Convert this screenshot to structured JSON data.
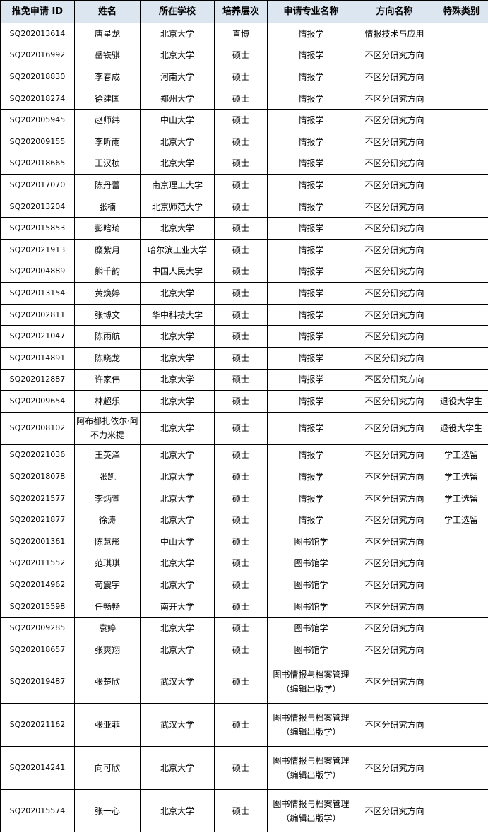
{
  "headers": [
    "推免申请 ID",
    "姓名",
    "所在学校",
    "培养层次",
    "申请专业名称",
    "方向名称",
    "特殊类别"
  ],
  "rows": [
    [
      "SQ202013614",
      "唐星龙",
      "北京大学",
      "直博",
      "情报学",
      "情报技术与应用",
      ""
    ],
    [
      "SQ202016992",
      "岳铁骐",
      "北京大学",
      "硕士",
      "情报学",
      "不区分研究方向",
      ""
    ],
    [
      "SQ202018830",
      "李春成",
      "河南大学",
      "硕士",
      "情报学",
      "不区分研究方向",
      ""
    ],
    [
      "SQ202018274",
      "徐建国",
      "郑州大学",
      "硕士",
      "情报学",
      "不区分研究方向",
      ""
    ],
    [
      "SQ202005945",
      "赵师纬",
      "中山大学",
      "硕士",
      "情报学",
      "不区分研究方向",
      ""
    ],
    [
      "SQ202009155",
      "李昕雨",
      "北京大学",
      "硕士",
      "情报学",
      "不区分研究方向",
      ""
    ],
    [
      "SQ202018665",
      "王汉桢",
      "北京大学",
      "硕士",
      "情报学",
      "不区分研究方向",
      ""
    ],
    [
      "SQ202017070",
      "陈丹蕾",
      "南京理工大学",
      "硕士",
      "情报学",
      "不区分研究方向",
      ""
    ],
    [
      "SQ202013204",
      "张楠",
      "北京师范大学",
      "硕士",
      "情报学",
      "不区分研究方向",
      ""
    ],
    [
      "SQ202015853",
      "彭晗琦",
      "北京大学",
      "硕士",
      "情报学",
      "不区分研究方向",
      ""
    ],
    [
      "SQ202021913",
      "糜紫月",
      "哈尔滨工业大学",
      "硕士",
      "情报学",
      "不区分研究方向",
      ""
    ],
    [
      "SQ202004889",
      "熊千韵",
      "中国人民大学",
      "硕士",
      "情报学",
      "不区分研究方向",
      ""
    ],
    [
      "SQ202013154",
      "黄焕婷",
      "北京大学",
      "硕士",
      "情报学",
      "不区分研究方向",
      ""
    ],
    [
      "SQ202002811",
      "张博文",
      "华中科技大学",
      "硕士",
      "情报学",
      "不区分研究方向",
      ""
    ],
    [
      "SQ202021047",
      "陈雨航",
      "北京大学",
      "硕士",
      "情报学",
      "不区分研究方向",
      ""
    ],
    [
      "SQ202014891",
      "陈晓龙",
      "北京大学",
      "硕士",
      "情报学",
      "不区分研究方向",
      ""
    ],
    [
      "SQ202012887",
      "许家伟",
      "北京大学",
      "硕士",
      "情报学",
      "不区分研究方向",
      ""
    ],
    [
      "SQ202009654",
      "林超乐",
      "北京大学",
      "硕士",
      "情报学",
      "不区分研究方向",
      "退役大学生"
    ],
    [
      "SQ202008102",
      "阿布都扎依尔·阿不力米提",
      "北京大学",
      "硕士",
      "情报学",
      "不区分研究方向",
      "退役大学生"
    ],
    [
      "SQ202021036",
      "王英泽",
      "北京大学",
      "硕士",
      "情报学",
      "不区分研究方向",
      "学工选留"
    ],
    [
      "SQ202018078",
      "张凯",
      "北京大学",
      "硕士",
      "情报学",
      "不区分研究方向",
      "学工选留"
    ],
    [
      "SQ202021577",
      "李炳萱",
      "北京大学",
      "硕士",
      "情报学",
      "不区分研究方向",
      "学工选留"
    ],
    [
      "SQ202021877",
      "徐涛",
      "北京大学",
      "硕士",
      "情报学",
      "不区分研究方向",
      "学工选留"
    ],
    [
      "SQ202001361",
      "陈慧彤",
      "中山大学",
      "硕士",
      "图书馆学",
      "不区分研究方向",
      ""
    ],
    [
      "SQ202011552",
      "范琪琪",
      "北京大学",
      "硕士",
      "图书馆学",
      "不区分研究方向",
      ""
    ],
    [
      "SQ202014962",
      "苟震宇",
      "北京大学",
      "硕士",
      "图书馆学",
      "不区分研究方向",
      ""
    ],
    [
      "SQ202015598",
      "任畅畅",
      "南开大学",
      "硕士",
      "图书馆学",
      "不区分研究方向",
      ""
    ],
    [
      "SQ202009285",
      "袁婷",
      "北京大学",
      "硕士",
      "图书馆学",
      "不区分研究方向",
      ""
    ],
    [
      "SQ202018657",
      "张爽翔",
      "北京大学",
      "硕士",
      "图书馆学",
      "不区分研究方向",
      ""
    ],
    [
      "SQ202019487",
      "张楚欣",
      "武汉大学",
      "硕士",
      "图书情报与档案管理（编辑出版学）",
      "不区分研究方向",
      ""
    ],
    [
      "SQ202021162",
      "张亚菲",
      "武汉大学",
      "硕士",
      "图书情报与档案管理（编辑出版学）",
      "不区分研究方向",
      ""
    ],
    [
      "SQ202014241",
      "向可欣",
      "北京大学",
      "硕士",
      "图书情报与档案管理（编辑出版学）",
      "不区分研究方向",
      ""
    ],
    [
      "SQ202015574",
      "张一心",
      "北京大学",
      "硕士",
      "图书情报与档案管理（编辑出版学）",
      "不区分研究方向",
      ""
    ]
  ],
  "colors": {
    "header_bg": "#dce6f1",
    "border": "#000000"
  }
}
